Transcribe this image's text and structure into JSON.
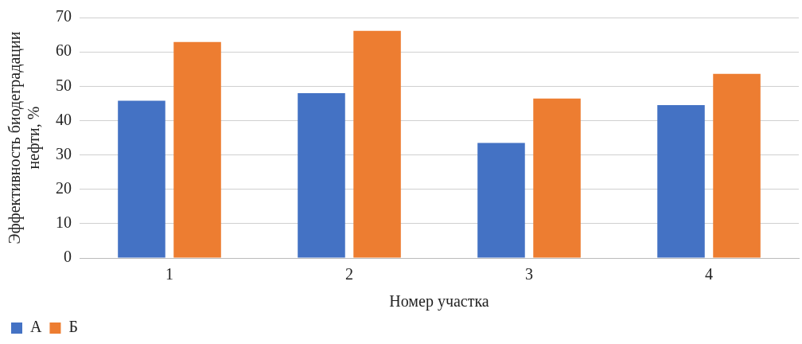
{
  "chart_data": {
    "type": "bar",
    "xlabel": "Номер участка",
    "ylabel": "Эффективность биодеградации\nнефти, %",
    "categories": [
      "1",
      "2",
      "3",
      "4"
    ],
    "series": [
      {
        "name": "А",
        "color": "#4472c4",
        "values": [
          45.8,
          48.0,
          33.5,
          44.5
        ]
      },
      {
        "name": "Б",
        "color": "#ed7d31",
        "values": [
          62.9,
          66.1,
          46.4,
          53.6
        ]
      }
    ],
    "ylim": [
      0,
      70
    ],
    "yticks": [
      0,
      10,
      20,
      30,
      40,
      50,
      60,
      70
    ],
    "grid": "y",
    "legend": "bottom left"
  }
}
